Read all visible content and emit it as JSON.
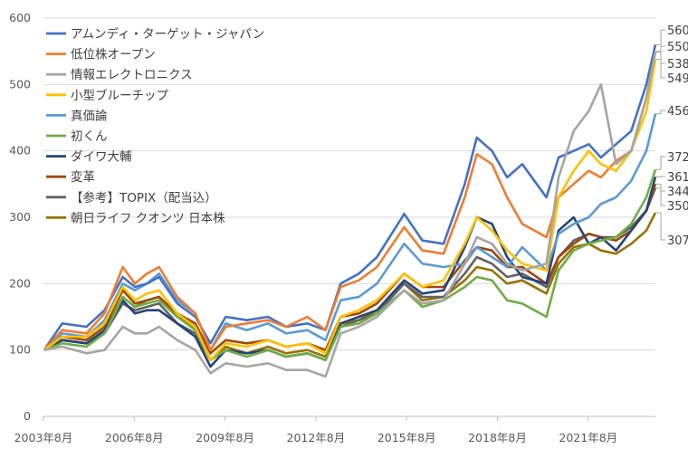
{
  "chart_data": {
    "type": "line",
    "title": "",
    "xlabel": "",
    "ylabel": "",
    "ylim": [
      0,
      600
    ],
    "yticks": [
      "0",
      "100",
      "200",
      "300",
      "400",
      "500",
      "600"
    ],
    "xlim": [
      2003.58,
      2023.8
    ],
    "xticks": [
      {
        "t": 2003.58,
        "label": "2003年8月"
      },
      {
        "t": 2006.58,
        "label": "2006年8月"
      },
      {
        "t": 2009.58,
        "label": "2009年8月"
      },
      {
        "t": 2012.58,
        "label": "2012年8月"
      },
      {
        "t": 2015.58,
        "label": "2015年8月"
      },
      {
        "t": 2018.58,
        "label": "2018年8月"
      },
      {
        "t": 2021.58,
        "label": "2021年8月"
      }
    ],
    "grid": true,
    "legend_position": "top-left",
    "x": [
      2003.6,
      2004.2,
      2005.0,
      2005.6,
      2006.2,
      2006.6,
      2007.0,
      2007.4,
      2008.0,
      2008.6,
      2009.1,
      2009.6,
      2010.3,
      2011.0,
      2011.6,
      2012.3,
      2012.9,
      2013.4,
      2014.0,
      2014.6,
      2015.5,
      2016.1,
      2016.8,
      2017.5,
      2017.9,
      2018.4,
      2018.9,
      2019.4,
      2020.2,
      2020.6,
      2021.1,
      2021.6,
      2022.0,
      2022.5,
      2023.0,
      2023.5,
      2023.8
    ],
    "series": [
      {
        "name": "アムンディ・ターゲット・ジャパン",
        "color": "#4472C4",
        "end_label": "560",
        "values": [
          100,
          140,
          135,
          160,
          210,
          195,
          200,
          210,
          170,
          150,
          110,
          150,
          145,
          150,
          135,
          140,
          130,
          200,
          215,
          240,
          305,
          265,
          260,
          350,
          420,
          400,
          360,
          380,
          330,
          390,
          400,
          410,
          390,
          410,
          430,
          500,
          560
        ]
      },
      {
        "name": "低位株オープン",
        "color": "#ED7D31",
        "end_label": "549",
        "values": [
          100,
          130,
          125,
          155,
          225,
          200,
          215,
          225,
          180,
          155,
          100,
          135,
          140,
          145,
          135,
          150,
          130,
          195,
          205,
          225,
          285,
          250,
          245,
          330,
          395,
          380,
          330,
          290,
          270,
          330,
          350,
          370,
          360,
          385,
          400,
          480,
          549
        ]
      },
      {
        "name": "情報エレクトロニクス",
        "color": "#A5A5A5",
        "end_label": "550",
        "values": [
          100,
          105,
          95,
          100,
          135,
          125,
          125,
          135,
          115,
          100,
          65,
          80,
          75,
          80,
          70,
          70,
          60,
          125,
          135,
          150,
          190,
          170,
          175,
          230,
          270,
          260,
          230,
          220,
          230,
          360,
          430,
          460,
          500,
          380,
          400,
          480,
          550
        ]
      },
      {
        "name": "小型ブルーチップ",
        "color": "#FFC000",
        "end_label": "538",
        "values": [
          100,
          120,
          120,
          140,
          195,
          175,
          185,
          190,
          155,
          135,
          85,
          110,
          105,
          115,
          105,
          110,
          95,
          150,
          160,
          175,
          215,
          195,
          205,
          260,
          300,
          280,
          250,
          230,
          220,
          330,
          370,
          400,
          380,
          370,
          400,
          460,
          538
        ]
      },
      {
        "name": "真価論",
        "color": "#5B9BD5",
        "end_label": "456",
        "values": [
          100,
          125,
          120,
          145,
          200,
          190,
          200,
          215,
          175,
          155,
          100,
          140,
          130,
          140,
          125,
          130,
          115,
          175,
          180,
          200,
          260,
          230,
          225,
          230,
          255,
          240,
          225,
          255,
          220,
          275,
          290,
          300,
          320,
          330,
          355,
          400,
          456
        ]
      },
      {
        "name": "初くん",
        "color": "#70AD47",
        "end_label": "372",
        "values": [
          100,
          110,
          105,
          125,
          180,
          165,
          170,
          175,
          150,
          130,
          85,
          100,
          90,
          100,
          90,
          95,
          85,
          135,
          140,
          155,
          190,
          165,
          175,
          195,
          210,
          205,
          175,
          170,
          150,
          220,
          250,
          260,
          265,
          270,
          290,
          330,
          372
        ]
      },
      {
        "name": "ダイワ大輔",
        "color": "#264478",
        "end_label": "361",
        "values": [
          100,
          115,
          110,
          130,
          175,
          155,
          160,
          160,
          140,
          120,
          75,
          100,
          95,
          100,
          90,
          95,
          85,
          140,
          150,
          160,
          205,
          185,
          190,
          255,
          300,
          290,
          240,
          210,
          200,
          280,
          300,
          260,
          270,
          250,
          280,
          310,
          361
        ]
      },
      {
        "name": "変革",
        "color": "#9E480E",
        "end_label": "350",
        "values": [
          100,
          120,
          115,
          135,
          190,
          170,
          175,
          180,
          155,
          140,
          95,
          115,
          110,
          115,
          105,
          110,
          100,
          150,
          155,
          170,
          215,
          195,
          195,
          235,
          255,
          250,
          225,
          225,
          200,
          240,
          260,
          275,
          270,
          265,
          280,
          310,
          350
        ]
      },
      {
        "name": "【参考】TOPIX（配当込）",
        "color": "#636363",
        "end_label": "344",
        "values": [
          100,
          115,
          110,
          125,
          170,
          160,
          165,
          170,
          140,
          125,
          85,
          100,
          95,
          100,
          90,
          95,
          85,
          135,
          145,
          155,
          200,
          180,
          180,
          215,
          240,
          230,
          210,
          215,
          195,
          240,
          265,
          275,
          270,
          270,
          285,
          310,
          344
        ]
      },
      {
        "name": "朝日ライフ クオンツ 日本株",
        "color": "#997300",
        "end_label": "307",
        "values": [
          100,
          115,
          110,
          130,
          180,
          165,
          175,
          180,
          150,
          135,
          85,
          105,
          95,
          105,
          95,
          100,
          90,
          140,
          145,
          160,
          200,
          175,
          180,
          205,
          225,
          220,
          200,
          205,
          185,
          230,
          255,
          260,
          250,
          245,
          260,
          280,
          307
        ]
      }
    ]
  }
}
